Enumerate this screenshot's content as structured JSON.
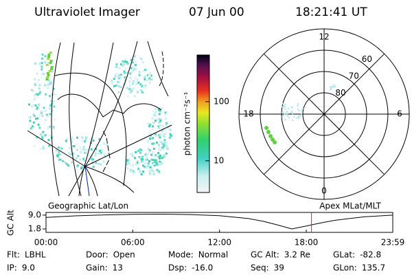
{
  "header": {
    "title": "Ultraviolet Imager",
    "date": "07 Jun 00",
    "time": "18:21:41 UT"
  },
  "colorbar": {
    "label": "photon cm⁻²s⁻¹",
    "scale": "log",
    "range": [
      2.9,
      617
    ],
    "ticks": [
      10,
      100
    ]
  },
  "polar": {
    "mlt_labels": [
      12,
      18,
      6,
      0
    ],
    "lat_rings": [
      80,
      70,
      60
    ],
    "lat_range": [
      90,
      50
    ]
  },
  "orbit": {
    "left_label": "Geographic Lat/Lon",
    "right_label": "Apex MLat/MLT",
    "ylabel": "GC Alt",
    "ylim": [
      0.0,
      10.4
    ],
    "yticks": [
      {
        "value": 9.0,
        "label": "9.0"
      },
      {
        "value": 1.8,
        "label": "1.8"
      }
    ],
    "xlim": [
      0,
      1439
    ],
    "xticks": [
      {
        "value": 0,
        "label": "00:00"
      },
      {
        "value": 360,
        "label": "06:00"
      },
      {
        "value": 720,
        "label": "12:00"
      },
      {
        "value": 1080,
        "label": "18:00"
      },
      {
        "value": 1439,
        "label": "23:59"
      }
    ],
    "x": [
      0,
      120,
      240,
      360,
      480,
      600,
      720,
      840,
      900,
      960,
      1020,
      1080,
      1140,
      1200,
      1320,
      1439
    ],
    "values": [
      7.8,
      8.6,
      9.1,
      9.4,
      9.5,
      9.3,
      8.7,
      7.2,
      5.8,
      3.9,
      1.8,
      3.3,
      4.9,
      6.3,
      8.1,
      9.0
    ],
    "marker": 1101.7,
    "marker_color": "#e02020"
  },
  "footer": {
    "rows": [
      [
        {
          "label": "Flt:",
          "value": "LBHL"
        },
        {
          "label": "Door:",
          "value": "Open"
        },
        {
          "label": "Mode:",
          "value": "Normal"
        },
        {
          "label": "GC Alt:",
          "value": "3.2 Re"
        },
        {
          "label": "GLat:",
          "value": "-82.8"
        }
      ],
      [
        {
          "label": "IP:",
          "value": "9.0"
        },
        {
          "label": "Gain:",
          "value": "13"
        },
        {
          "label": "Dsp:",
          "value": "-16.0"
        },
        {
          "label": "Seq:",
          "value": "39"
        },
        {
          "label": "GLon:",
          "value": "135.7"
        }
      ]
    ]
  }
}
